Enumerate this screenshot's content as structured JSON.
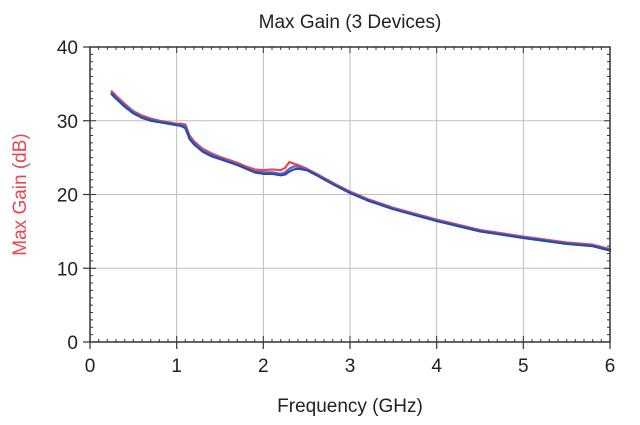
{
  "chart_data": {
    "type": "line",
    "title": "Max Gain (3 Devices)",
    "xlabel": "Frequency (GHz)",
    "ylabel": "Max Gain (dB)",
    "xlim": [
      0,
      6
    ],
    "ylim": [
      0,
      40
    ],
    "xticks": [
      0,
      1,
      2,
      3,
      4,
      5,
      6
    ],
    "yticks": [
      0,
      10,
      20,
      30,
      40
    ],
    "grid": true,
    "legend": "none",
    "colors": {
      "axis": "#333333",
      "grid": "#bdbdbd",
      "ylabel": "#e8474f"
    },
    "series": [
      {
        "color": "#e8474f",
        "x": [
          0.25,
          0.3,
          0.4,
          0.5,
          0.6,
          0.7,
          0.8,
          0.9,
          1.0,
          1.05,
          1.1,
          1.15,
          1.2,
          1.3,
          1.4,
          1.5,
          1.6,
          1.7,
          1.8,
          1.9,
          2.0,
          2.1,
          2.2,
          2.25,
          2.3,
          2.35,
          2.4,
          2.5,
          2.6,
          2.8,
          3.0,
          3.2,
          3.5,
          4.0,
          4.5,
          5.0,
          5.5,
          5.8,
          6.0
        ],
        "y": [
          34.0,
          33.4,
          32.3,
          31.3,
          30.7,
          30.3,
          30.0,
          29.8,
          29.6,
          29.6,
          29.5,
          28.0,
          27.2,
          26.2,
          25.6,
          25.1,
          24.7,
          24.3,
          23.8,
          23.4,
          23.3,
          23.4,
          23.3,
          23.6,
          24.4,
          24.2,
          24.0,
          23.5,
          22.9,
          21.6,
          20.4,
          19.4,
          18.2,
          16.6,
          15.2,
          14.3,
          13.5,
          13.2,
          12.6
        ]
      },
      {
        "color": "#6a5fbf",
        "x": [
          0.25,
          0.3,
          0.4,
          0.5,
          0.6,
          0.7,
          0.8,
          0.9,
          1.0,
          1.05,
          1.1,
          1.15,
          1.2,
          1.3,
          1.4,
          1.5,
          1.6,
          1.7,
          1.8,
          1.9,
          2.0,
          2.1,
          2.2,
          2.25,
          2.3,
          2.35,
          2.4,
          2.5,
          2.6,
          2.8,
          3.0,
          3.2,
          3.5,
          4.0,
          4.5,
          5.0,
          5.5,
          5.8,
          6.0
        ],
        "y": [
          33.8,
          33.2,
          32.1,
          31.2,
          30.5,
          30.2,
          29.9,
          29.7,
          29.5,
          29.5,
          29.3,
          27.7,
          27.0,
          26.0,
          25.4,
          25.0,
          24.5,
          24.1,
          23.6,
          23.1,
          23.0,
          23.0,
          22.8,
          23.0,
          23.5,
          23.8,
          23.8,
          23.4,
          22.8,
          21.5,
          20.3,
          19.3,
          18.1,
          16.5,
          15.1,
          14.2,
          13.4,
          13.1,
          12.5
        ]
      },
      {
        "color": "#2a4aa8",
        "x": [
          0.25,
          0.3,
          0.4,
          0.5,
          0.6,
          0.7,
          0.8,
          0.9,
          1.0,
          1.05,
          1.1,
          1.15,
          1.2,
          1.3,
          1.4,
          1.5,
          1.6,
          1.7,
          1.8,
          1.9,
          2.0,
          2.1,
          2.2,
          2.25,
          2.3,
          2.35,
          2.4,
          2.5,
          2.6,
          2.8,
          3.0,
          3.2,
          3.5,
          4.0,
          4.5,
          5.0,
          5.5,
          5.8,
          6.0
        ],
        "y": [
          33.6,
          33.0,
          31.9,
          31.0,
          30.4,
          30.0,
          29.8,
          29.6,
          29.4,
          29.3,
          29.0,
          27.5,
          26.8,
          25.8,
          25.2,
          24.8,
          24.4,
          24.0,
          23.5,
          23.0,
          22.8,
          22.8,
          22.6,
          22.7,
          23.1,
          23.4,
          23.5,
          23.3,
          22.7,
          21.4,
          20.2,
          19.2,
          18.0,
          16.4,
          15.0,
          14.1,
          13.3,
          13.0,
          12.4
        ]
      }
    ]
  }
}
